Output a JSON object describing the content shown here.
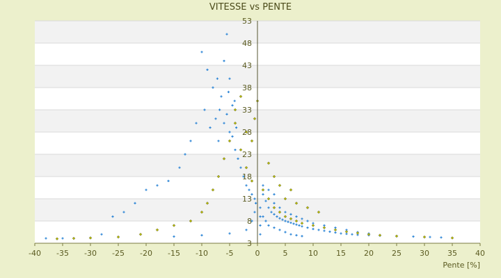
{
  "chart_data": {
    "type": "scatter",
    "title": "VITESSE vs PENTE",
    "xlabel": "Pente [%]",
    "ylabel": "",
    "xlim": [
      -40,
      40
    ],
    "ylim": [
      3,
      53
    ],
    "x_ticks": [
      -40,
      -35,
      -30,
      -25,
      -20,
      -15,
      -10,
      -5,
      0,
      5,
      10,
      15,
      20,
      25,
      30,
      35,
      40
    ],
    "y_ticks": [
      3,
      8,
      13,
      18,
      23,
      28,
      33,
      38,
      43,
      48,
      53
    ],
    "grid": true,
    "legend": "none",
    "series": [
      {
        "color": "#2e86d6",
        "marker": "plus",
        "points": [
          [
            -6,
            30
          ],
          [
            -5.5,
            32
          ],
          [
            -5,
            28
          ],
          [
            -4.5,
            34
          ],
          [
            -6.5,
            36
          ],
          [
            -7,
            26
          ],
          [
            -4,
            24
          ],
          [
            -5,
            40
          ],
          [
            -6,
            44
          ],
          [
            -5.5,
            50
          ],
          [
            -8,
            38
          ],
          [
            -9,
            42
          ],
          [
            -10,
            46
          ],
          [
            -3.5,
            22
          ],
          [
            -3,
            20
          ],
          [
            -2.5,
            18
          ],
          [
            -2,
            16
          ],
          [
            -1.5,
            15
          ],
          [
            -1,
            14
          ],
          [
            -0.5,
            13
          ],
          [
            -7.5,
            31
          ],
          [
            -8.5,
            29
          ],
          [
            -4.5,
            27
          ],
          [
            -3.8,
            29
          ],
          [
            -6.8,
            33
          ],
          [
            -5.2,
            37
          ],
          [
            -4.1,
            35
          ],
          [
            -7.2,
            40
          ],
          [
            -9.5,
            33
          ],
          [
            -11,
            30
          ],
          [
            -12,
            26
          ],
          [
            -13,
            23
          ],
          [
            -14,
            20
          ],
          [
            -16,
            17
          ],
          [
            -18,
            16
          ],
          [
            -20,
            15
          ],
          [
            -22,
            12
          ],
          [
            -24,
            10
          ],
          [
            -26,
            9
          ],
          [
            -28,
            5
          ],
          [
            -30,
            4.2
          ],
          [
            -35,
            4.1
          ],
          [
            -38,
            4.1
          ],
          [
            -15,
            4.5
          ],
          [
            -10,
            4.8
          ],
          [
            -5,
            5.2
          ],
          [
            -2,
            6
          ],
          [
            -1,
            8
          ],
          [
            -0.5,
            10
          ],
          [
            -0.3,
            12
          ],
          [
            1,
            14
          ],
          [
            1.5,
            12.5
          ],
          [
            2,
            11
          ],
          [
            2.5,
            10
          ],
          [
            3,
            9.5
          ],
          [
            3.5,
            9
          ],
          [
            4,
            8.6
          ],
          [
            4.5,
            8.3
          ],
          [
            5,
            8
          ],
          [
            5.5,
            7.8
          ],
          [
            6,
            7.6
          ],
          [
            6.5,
            7.4
          ],
          [
            7,
            7.2
          ],
          [
            7.5,
            7
          ],
          [
            8,
            6.8
          ],
          [
            9,
            6.5
          ],
          [
            10,
            6.2
          ],
          [
            11,
            6
          ],
          [
            12,
            5.8
          ],
          [
            13,
            5.6
          ],
          [
            14,
            5.4
          ],
          [
            15,
            5.2
          ],
          [
            16,
            5.1
          ],
          [
            17,
            5
          ],
          [
            18,
            4.9
          ],
          [
            20,
            4.8
          ],
          [
            22,
            4.7
          ],
          [
            25,
            4.6
          ],
          [
            28,
            4.5
          ],
          [
            31,
            4.4
          ],
          [
            33,
            4.3
          ],
          [
            2,
            7
          ],
          [
            3,
            6.5
          ],
          [
            4,
            6
          ],
          [
            5,
            5.5
          ],
          [
            6,
            5
          ],
          [
            7,
            4.8
          ],
          [
            8,
            4.6
          ],
          [
            1,
            9
          ],
          [
            1.5,
            8
          ],
          [
            3,
            12
          ],
          [
            4,
            11
          ],
          [
            5,
            10
          ],
          [
            6,
            9.5
          ],
          [
            7,
            9
          ],
          [
            8,
            8.5
          ],
          [
            9,
            8
          ],
          [
            10,
            7.5
          ],
          [
            12,
            7
          ],
          [
            14,
            6.5
          ],
          [
            16,
            6
          ],
          [
            18,
            5.5
          ],
          [
            20,
            5.2
          ],
          [
            2,
            15
          ],
          [
            3,
            14
          ],
          [
            1,
            16
          ],
          [
            0.5,
            11
          ],
          [
            0.5,
            9
          ],
          [
            0.5,
            7
          ],
          [
            0.5,
            5
          ]
        ]
      },
      {
        "color": "#b5b800",
        "marker": "diamond",
        "points": [
          [
            -5,
            26
          ],
          [
            -4,
            30
          ],
          [
            -3,
            24
          ],
          [
            -2,
            20
          ],
          [
            -1,
            17
          ],
          [
            -6,
            22
          ],
          [
            -7,
            18
          ],
          [
            -8,
            15
          ],
          [
            -9,
            12
          ],
          [
            -10,
            10
          ],
          [
            -12,
            8
          ],
          [
            -15,
            7
          ],
          [
            -18,
            6
          ],
          [
            -21,
            5
          ],
          [
            -25,
            4.4
          ],
          [
            -30,
            4.2
          ],
          [
            -33,
            4.1
          ],
          [
            -36,
            4.0
          ],
          [
            -3,
            36
          ],
          [
            -4,
            33
          ],
          [
            1,
            15
          ],
          [
            2,
            13
          ],
          [
            3,
            11
          ],
          [
            4,
            10
          ],
          [
            5,
            9
          ],
          [
            6,
            8.5
          ],
          [
            7,
            8
          ],
          [
            8,
            7.5
          ],
          [
            10,
            7
          ],
          [
            12,
            6.5
          ],
          [
            14,
            6
          ],
          [
            16,
            5.6
          ],
          [
            18,
            5.3
          ],
          [
            20,
            5
          ],
          [
            22,
            4.8
          ],
          [
            25,
            4.6
          ],
          [
            30,
            4.4
          ],
          [
            35,
            4.2
          ],
          [
            5,
            13
          ],
          [
            7,
            12
          ],
          [
            9,
            11
          ],
          [
            11,
            10
          ],
          [
            4,
            16
          ],
          [
            6,
            15
          ],
          [
            3,
            18
          ],
          [
            2,
            21
          ],
          [
            -1,
            26
          ],
          [
            -2,
            28
          ],
          [
            0,
            35
          ],
          [
            -0.5,
            31
          ]
        ]
      }
    ]
  }
}
